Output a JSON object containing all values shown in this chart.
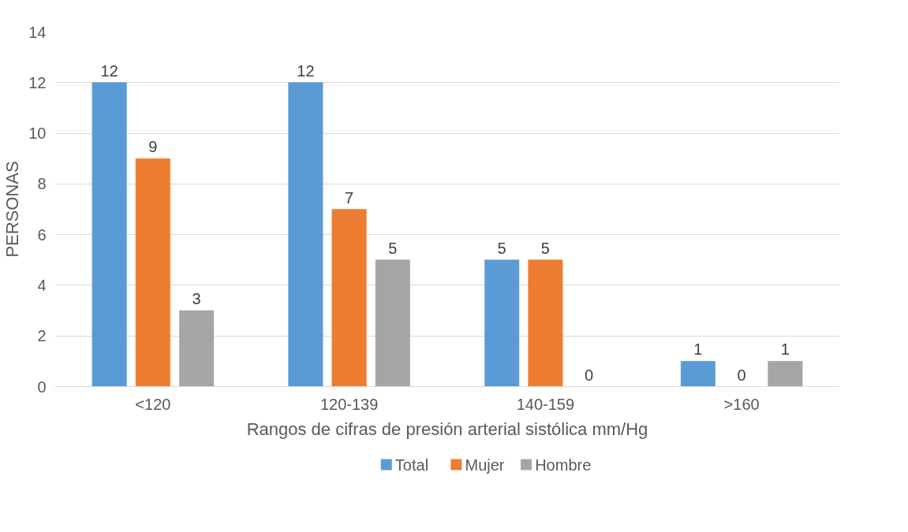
{
  "chart_data": {
    "type": "bar",
    "xlabel": "Rangos de cifras de presión arterial sistólica mm/Hg",
    "ylabel": "PERSONAS",
    "categories": [
      "<120",
      "120-139",
      "140-159",
      ">160"
    ],
    "series": [
      {
        "name": "Total",
        "color": "#5b9bd5",
        "values": [
          12,
          12,
          5,
          1
        ]
      },
      {
        "name": "Mujer",
        "color": "#ed7d31",
        "values": [
          9,
          7,
          5,
          0
        ]
      },
      {
        "name": "Hombre",
        "color": "#a5a5a5",
        "values": [
          3,
          5,
          0,
          1
        ]
      }
    ],
    "ylim": [
      0,
      14
    ],
    "yticks": [
      0,
      2,
      4,
      6,
      8,
      10,
      12,
      14
    ],
    "grid": "y",
    "legend": "bottom",
    "data_labels": true
  }
}
